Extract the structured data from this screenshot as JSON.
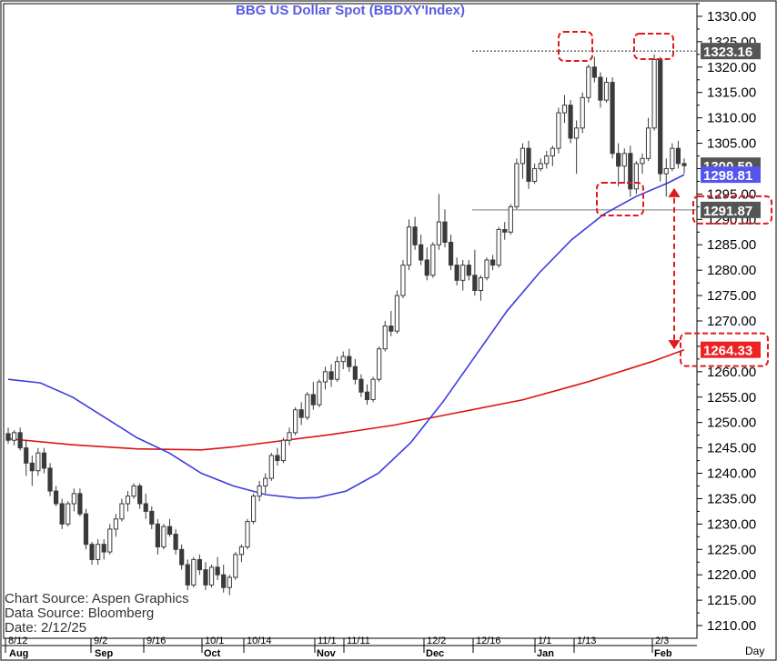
{
  "chart_data": {
    "type": "candlestick",
    "title": "BBG  US  Dollar  Spot  (BBDXY'Index)",
    "xlabel": "Day",
    "ylabel": "",
    "ylim": [
      1207.5,
      1332.5
    ],
    "y_ticks": [
      "1210.00",
      "1215.00",
      "1220.00",
      "1225.00",
      "1230.00",
      "1235.00",
      "1240.00",
      "1245.00",
      "1250.00",
      "1255.00",
      "1260.00",
      "1265.00",
      "1270.00",
      "1275.00",
      "1280.00",
      "1285.00",
      "1290.00",
      "1295.00",
      "1300.00",
      "1305.00",
      "1310.00",
      "1315.00",
      "1320.00",
      "1325.00",
      "1330.00"
    ],
    "x_ticks_top": [
      "8/12",
      "9/2",
      "9/16",
      "10/1",
      "10/14",
      "11/1",
      "11/11",
      "12/2",
      "12/16",
      "1/1",
      "1/13",
      "2/3"
    ],
    "x_ticks_bottom": [
      "Aug",
      "Sep",
      "Oct",
      "Nov",
      "Dec",
      "Jan",
      "Feb"
    ],
    "callouts": [
      {
        "label": "1323.16",
        "value": 1323.16,
        "color": "#555555"
      },
      {
        "label": "1300.59",
        "value": 1300.59,
        "color": "#555555"
      },
      {
        "label": "1298.81",
        "value": 1298.81,
        "color": "#5555ee"
      },
      {
        "label": "1291.87",
        "value": 1291.87,
        "color": "#555555"
      },
      {
        "label": "1264.33",
        "value": 1264.33,
        "color": "#ee2222"
      }
    ],
    "colors": {
      "candle": "#3a3a3a",
      "ma_blue": "#3b3bdd",
      "ma_red": "#dd1111",
      "annotation": "#e01a1a"
    },
    "blue_ma": [
      [
        0,
        1258.5
      ],
      [
        10,
        1257.8
      ],
      [
        20,
        1255
      ],
      [
        30,
        1251
      ],
      [
        40,
        1247
      ],
      [
        50,
        1244
      ],
      [
        60,
        1240
      ],
      [
        70,
        1237.5
      ],
      [
        80,
        1235.8
      ],
      [
        90,
        1235.1
      ],
      [
        96,
        1235.2
      ],
      [
        105,
        1236.5
      ],
      [
        115,
        1240
      ],
      [
        125,
        1246
      ],
      [
        135,
        1254
      ],
      [
        145,
        1263
      ],
      [
        155,
        1272
      ],
      [
        165,
        1279.5
      ],
      [
        175,
        1286
      ],
      [
        185,
        1291
      ],
      [
        195,
        1294.5
      ],
      [
        205,
        1297.2
      ],
      [
        210,
        1298.81
      ]
    ],
    "red_ma": [
      [
        0,
        1246.8
      ],
      [
        20,
        1245.6
      ],
      [
        40,
        1244.8
      ],
      [
        60,
        1244.6
      ],
      [
        70,
        1245.2
      ],
      [
        80,
        1246
      ],
      [
        100,
        1247.6
      ],
      [
        120,
        1249.5
      ],
      [
        140,
        1252
      ],
      [
        160,
        1254.5
      ],
      [
        180,
        1258
      ],
      [
        200,
        1262
      ],
      [
        210,
        1264.33
      ]
    ],
    "candles_ohlc": [
      [
        1247.8,
        1249.0,
        1245.8,
        1246.5
      ],
      [
        1246.5,
        1248.5,
        1245.5,
        1248.0
      ],
      [
        1248.0,
        1249.0,
        1244.5,
        1245.0
      ],
      [
        1245.0,
        1246.5,
        1239.5,
        1242.0
      ],
      [
        1242.0,
        1243.5,
        1237.5,
        1240.5
      ],
      [
        1240.5,
        1245.0,
        1239.5,
        1244.0
      ],
      [
        1244.0,
        1245.0,
        1240.0,
        1241.0
      ],
      [
        1241.0,
        1242.0,
        1235.5,
        1236.5
      ],
      [
        1236.5,
        1237.5,
        1233.5,
        1234.0
      ],
      [
        1234.0,
        1235.0,
        1229.0,
        1230.0
      ],
      [
        1230.0,
        1234.5,
        1229.5,
        1234.0
      ],
      [
        1234.0,
        1237.0,
        1232.5,
        1236.0
      ],
      [
        1236.0,
        1237.0,
        1231.5,
        1232.0
      ],
      [
        1232.0,
        1233.0,
        1225.0,
        1226.0
      ],
      [
        1226.0,
        1226.5,
        1222.0,
        1223.0
      ],
      [
        1223.0,
        1227.0,
        1222.0,
        1226.0
      ],
      [
        1226.0,
        1227.0,
        1223.0,
        1224.5
      ],
      [
        1224.5,
        1230.0,
        1224.0,
        1229.0
      ],
      [
        1229.0,
        1232.0,
        1227.5,
        1231.0
      ],
      [
        1231.0,
        1235.0,
        1230.5,
        1234.0
      ],
      [
        1234.0,
        1236.5,
        1232.5,
        1235.5
      ],
      [
        1235.5,
        1238.0,
        1235.0,
        1237.5
      ],
      [
        1237.5,
        1238.0,
        1233.0,
        1234.0
      ],
      [
        1234.0,
        1236.0,
        1231.0,
        1232.5
      ],
      [
        1232.5,
        1233.5,
        1229.0,
        1230.0
      ],
      [
        1230.0,
        1231.0,
        1224.0,
        1225.5
      ],
      [
        1225.5,
        1230.0,
        1225.0,
        1229.5
      ],
      [
        1229.5,
        1231.0,
        1227.5,
        1228.0
      ],
      [
        1228.0,
        1229.0,
        1224.0,
        1225.0
      ],
      [
        1225.0,
        1226.0,
        1221.0,
        1222.0
      ],
      [
        1222.0,
        1223.0,
        1217.0,
        1218.0
      ],
      [
        1218.0,
        1223.5,
        1217.5,
        1223.0
      ],
      [
        1223.0,
        1224.0,
        1220.0,
        1221.0
      ],
      [
        1221.0,
        1222.5,
        1217.0,
        1218.0
      ],
      [
        1218.0,
        1222.0,
        1217.5,
        1221.5
      ],
      [
        1221.5,
        1223.5,
        1219.0,
        1220.0
      ],
      [
        1220.0,
        1222.0,
        1216.5,
        1217.5
      ],
      [
        1217.5,
        1220.0,
        1216.0,
        1219.5
      ],
      [
        1219.5,
        1224.5,
        1219.0,
        1224.0
      ],
      [
        1224.0,
        1226.0,
        1222.5,
        1225.5
      ],
      [
        1225.5,
        1231.0,
        1225.0,
        1230.5
      ],
      [
        1230.5,
        1236.0,
        1230.0,
        1235.5
      ],
      [
        1235.5,
        1238.5,
        1234.5,
        1237.5
      ],
      [
        1237.5,
        1240.0,
        1236.0,
        1239.0
      ],
      [
        1239.0,
        1244.0,
        1238.5,
        1243.5
      ],
      [
        1243.5,
        1245.0,
        1241.5,
        1242.5
      ],
      [
        1242.5,
        1247.0,
        1242.0,
        1246.5
      ],
      [
        1246.5,
        1249.0,
        1245.5,
        1248.0
      ],
      [
        1248.0,
        1253.0,
        1247.5,
        1252.5
      ],
      [
        1252.5,
        1254.0,
        1249.5,
        1251.0
      ],
      [
        1251.0,
        1256.0,
        1250.5,
        1255.5
      ],
      [
        1255.5,
        1258.0,
        1252.5,
        1253.5
      ],
      [
        1253.5,
        1258.5,
        1253.0,
        1258.0
      ],
      [
        1258.0,
        1261.0,
        1256.5,
        1260.0
      ],
      [
        1260.0,
        1261.5,
        1257.0,
        1258.5
      ],
      [
        1258.5,
        1263.0,
        1258.0,
        1262.0
      ],
      [
        1262.0,
        1264.0,
        1260.5,
        1263.0
      ],
      [
        1263.0,
        1264.5,
        1260.0,
        1261.0
      ],
      [
        1261.0,
        1262.5,
        1257.5,
        1258.5
      ],
      [
        1258.5,
        1259.5,
        1255.0,
        1256.0
      ],
      [
        1256.0,
        1257.5,
        1253.5,
        1254.5
      ],
      [
        1254.5,
        1259.0,
        1254.0,
        1258.5
      ],
      [
        1258.5,
        1265.0,
        1258.0,
        1264.5
      ],
      [
        1264.5,
        1270.0,
        1264.0,
        1269.0
      ],
      [
        1269.0,
        1272.0,
        1267.0,
        1268.0
      ],
      [
        1268.0,
        1276.0,
        1267.5,
        1275.0
      ],
      [
        1275.0,
        1282.0,
        1274.5,
        1281.0
      ],
      [
        1281.0,
        1290.0,
        1280.0,
        1288.5
      ],
      [
        1288.5,
        1290.5,
        1284.0,
        1285.0
      ],
      [
        1285.0,
        1287.0,
        1281.0,
        1282.0
      ],
      [
        1282.0,
        1284.5,
        1278.0,
        1279.0
      ],
      [
        1279.0,
        1285.5,
        1278.5,
        1285.0
      ],
      [
        1285.0,
        1295.0,
        1284.0,
        1289.5
      ],
      [
        1289.5,
        1292.0,
        1284.5,
        1285.5
      ],
      [
        1285.5,
        1287.0,
        1280.0,
        1281.0
      ],
      [
        1281.0,
        1282.5,
        1277.0,
        1278.0
      ],
      [
        1278.0,
        1282.0,
        1276.0,
        1281.0
      ],
      [
        1281.0,
        1282.0,
        1278.0,
        1279.0
      ],
      [
        1279.0,
        1284.0,
        1275.0,
        1276.0
      ],
      [
        1276.0,
        1279.0,
        1274.0,
        1278.5
      ],
      [
        1278.5,
        1282.5,
        1278.0,
        1282.0
      ],
      [
        1282.0,
        1283.0,
        1280.0,
        1281.0
      ],
      [
        1281.0,
        1288.5,
        1280.5,
        1288.0
      ],
      [
        1288.0,
        1289.5,
        1286.0,
        1287.5
      ],
      [
        1287.5,
        1293.0,
        1287.0,
        1292.5
      ],
      [
        1292.5,
        1302.0,
        1292.0,
        1301.0
      ],
      [
        1301.0,
        1305.0,
        1298.0,
        1304.0
      ],
      [
        1304.0,
        1305.5,
        1296.0,
        1297.5
      ],
      [
        1297.5,
        1301.0,
        1297.0,
        1300.0
      ],
      [
        1300.0,
        1302.0,
        1299.5,
        1301.0
      ],
      [
        1301.0,
        1303.5,
        1300.0,
        1302.5
      ],
      [
        1302.5,
        1304.5,
        1300.5,
        1304.0
      ],
      [
        1304.0,
        1312.0,
        1303.0,
        1311.0
      ],
      [
        1311.0,
        1314.5,
        1309.0,
        1312.5
      ],
      [
        1312.5,
        1313.5,
        1305.0,
        1306.0
      ],
      [
        1306.0,
        1309.5,
        1299.0,
        1308.0
      ],
      [
        1308.0,
        1315.0,
        1307.0,
        1314.0
      ],
      [
        1314.0,
        1320.5,
        1313.0,
        1320.0
      ],
      [
        1320.0,
        1322.0,
        1317.0,
        1318.0
      ],
      [
        1318.0,
        1319.0,
        1312.0,
        1313.5
      ],
      [
        1313.5,
        1318.0,
        1313.0,
        1317.0
      ],
      [
        1317.0,
        1318.0,
        1302.0,
        1303.0
      ],
      [
        1303.0,
        1305.0,
        1296.5,
        1300.5
      ],
      [
        1300.5,
        1304.0,
        1297.0,
        1303.0
      ],
      [
        1303.0,
        1304.5,
        1294.5,
        1296.0
      ],
      [
        1296.0,
        1301.5,
        1295.0,
        1301.0
      ],
      [
        1301.0,
        1303.0,
        1299.0,
        1302.0
      ],
      [
        1302.0,
        1310.0,
        1301.5,
        1308.0
      ],
      [
        1308.0,
        1322.5,
        1307.5,
        1321.5
      ],
      [
        1321.5,
        1322.0,
        1297.5,
        1299.0
      ],
      [
        1299.0,
        1302.0,
        1294.5,
        1300.0
      ],
      [
        1300.0,
        1305.0,
        1299.5,
        1304.0
      ],
      [
        1304.0,
        1305.5,
        1300.0,
        1301.0
      ],
      [
        1301.0,
        1302.0,
        1299.0,
        1300.59
      ]
    ],
    "source_lines": [
      "Chart Source:  Aspen Graphics",
      "Data  Source:  Bloomberg",
      "Date:    2/12/25"
    ]
  }
}
